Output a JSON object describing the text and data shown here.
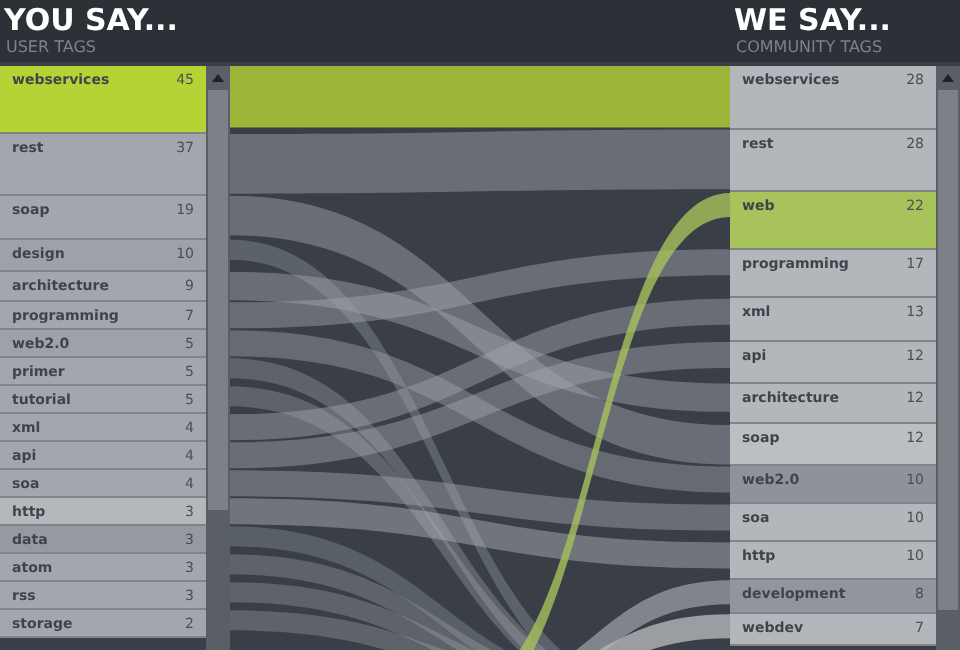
{
  "chart_data": [
    {
      "type": "other",
      "title": "YOU SAY...",
      "subtitle": "USER TAGS",
      "data_labels": true,
      "categories": [
        "webservices",
        "rest",
        "soap",
        "design",
        "architecture",
        "programming",
        "web2.0",
        "primer",
        "tutorial",
        "xml",
        "api",
        "soa",
        "http",
        "data",
        "atom",
        "rss",
        "storage"
      ],
      "values": [
        45,
        37,
        19,
        10,
        9,
        7,
        5,
        5,
        5,
        4,
        4,
        4,
        3,
        3,
        3,
        3,
        2
      ],
      "colors": [
        "#b5d334",
        "#a3a7ad",
        "#a3a7ad",
        "#9ea2a8",
        "#a3a7ad",
        "#a3a7ad",
        "#9ea2a8",
        "#a3a7ad",
        "#a3a7ad",
        "#a3a7ad",
        "#a3a7ad",
        "#a3a7ad",
        "#b4b8bc",
        "#969aa0",
        "#a3a7ad",
        "#a3a7ad",
        "#a3a7ad"
      ]
    },
    {
      "type": "other",
      "title": "WE SAY...",
      "subtitle": "COMMUNITY TAGS",
      "data_labels": true,
      "categories": [
        "webservices",
        "rest",
        "web",
        "programming",
        "xml",
        "api",
        "architecture",
        "soap",
        "web2.0",
        "soa",
        "http",
        "development",
        "webdev"
      ],
      "values": [
        28,
        28,
        22,
        17,
        13,
        12,
        12,
        12,
        10,
        10,
        10,
        8,
        7
      ],
      "colors": [
        "#b3b6ba",
        "#b3b6ba",
        "#a8c25c",
        "#b3b6ba",
        "#b3b6ba",
        "#b3b6ba",
        "#b3b6ba",
        "#bcbfc2",
        "#8f9399",
        "#b3b6ba",
        "#b3b6ba",
        "#92969c",
        "#b3b6ba"
      ]
    }
  ]
}
